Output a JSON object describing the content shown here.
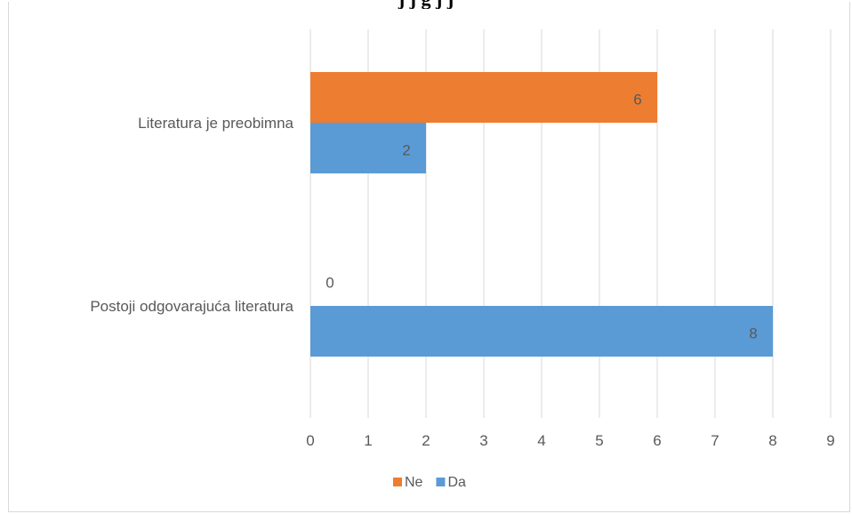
{
  "chart_title_fragment": "j j g j j",
  "chart_data": {
    "type": "bar",
    "orientation": "horizontal",
    "categories": [
      "Literatura je preobimna",
      "Postoji odgovarajuća literatura"
    ],
    "series": [
      {
        "name": "Ne",
        "color": "#ED7D31",
        "values": [
          6,
          0
        ]
      },
      {
        "name": "Da",
        "color": "#5B9BD5",
        "values": [
          2,
          8
        ]
      }
    ],
    "xlim": [
      0,
      9
    ],
    "xticks": [
      "0",
      "1",
      "2",
      "3",
      "4",
      "5",
      "6",
      "7",
      "8",
      "9"
    ],
    "grid": true,
    "data_labels": true,
    "legend_position": "bottom"
  }
}
